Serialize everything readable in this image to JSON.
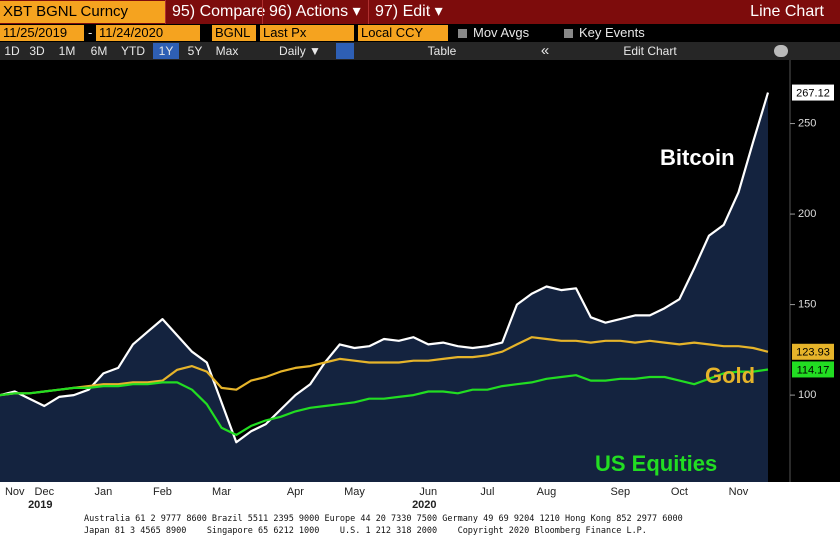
{
  "toolbar": {
    "security": "XBT BGNL Curncy",
    "buttons": [
      "95) Compare",
      "96) Actions ▾",
      "97) Edit ▾"
    ],
    "view": "Line Chart"
  },
  "controls": {
    "start_date": "11/25/2019",
    "separator": "-",
    "end_date": "11/24/2020",
    "source": "BGNL",
    "field": "Last Px",
    "currency": "Local CCY",
    "checkboxes": [
      "Mov Avgs",
      "Key Events"
    ]
  },
  "periods": {
    "items": [
      "1D",
      "3D",
      "1M",
      "6M",
      "YTD",
      "1Y",
      "5Y",
      "Max"
    ],
    "active_index": 5,
    "frequency": "Daily ▼",
    "table": "Table",
    "collapse": "«",
    "edit_chart": "Edit Chart"
  },
  "chart_data": {
    "type": "line",
    "categories": [
      null,
      "Nov",
      null,
      "Dec",
      null,
      null,
      null,
      "Jan",
      null,
      null,
      null,
      "Feb",
      null,
      null,
      null,
      "Mar",
      null,
      null,
      null,
      null,
      "Apr",
      null,
      null,
      null,
      "May",
      null,
      null,
      null,
      null,
      "Jun",
      null,
      null,
      null,
      "Jul",
      null,
      null,
      null,
      "Aug",
      null,
      null,
      null,
      null,
      "Sep",
      null,
      null,
      null,
      "Oct",
      null,
      null,
      null,
      "Nov",
      null,
      null
    ],
    "year_labels": [
      "2019",
      "2020"
    ],
    "series": [
      {
        "name": "Bitcoin",
        "color": "#ffffff",
        "fill": "#14233f",
        "values": [
          100,
          102,
          98,
          94,
          99,
          100,
          103,
          112,
          115,
          128,
          135,
          142,
          133,
          124,
          118,
          96,
          74,
          80,
          84,
          92,
          100,
          106,
          118,
          128,
          126,
          127,
          131,
          130,
          132,
          128,
          129,
          127,
          126,
          127,
          129,
          150,
          156,
          160,
          158,
          159,
          143,
          140,
          142,
          144,
          144,
          148,
          153,
          170,
          188,
          194,
          212,
          240,
          267.12
        ]
      },
      {
        "name": "Gold",
        "color": "#e6b42a",
        "values": [
          100,
          101,
          101,
          102,
          103,
          104,
          105,
          106,
          106,
          107,
          107,
          108,
          114,
          116,
          113,
          104,
          103,
          108,
          110,
          113,
          115,
          116,
          118,
          120,
          119,
          118,
          118,
          118,
          119,
          119,
          120,
          121,
          121,
          122,
          124,
          128,
          132,
          131,
          130,
          130,
          129,
          130,
          130,
          129,
          130,
          129,
          128,
          129,
          128,
          127,
          127,
          126,
          123.93
        ]
      },
      {
        "name": "US Equities",
        "color": "#22dd22",
        "values": [
          100,
          101,
          101,
          102,
          103,
          104,
          104,
          105,
          105,
          106,
          106,
          107,
          107,
          103,
          95,
          82,
          78,
          83,
          86,
          88,
          91,
          93,
          94,
          95,
          96,
          98,
          98,
          99,
          100,
          102,
          102,
          101,
          103,
          103,
          105,
          106,
          107,
          109,
          110,
          111,
          108,
          108,
          109,
          109,
          110,
          110,
          108,
          106,
          109,
          112,
          113,
          113,
          114.17
        ]
      }
    ],
    "ylim": [
      52,
      284
    ],
    "yticks": [
      100,
      150,
      200,
      250
    ],
    "grid": false
  },
  "footer": [
    "Australia 61 2 9777 8600 Brazil 5511 2395 9000 Europe 44 20 7330 7500 Germany 49 69 9204 1210 Hong Kong 852 2977 6000",
    "Japan 81 3 4565 8900    Singapore 65 6212 1000    U.S. 1 212 318 2000    Copyright 2020 Bloomberg Finance L.P."
  ]
}
